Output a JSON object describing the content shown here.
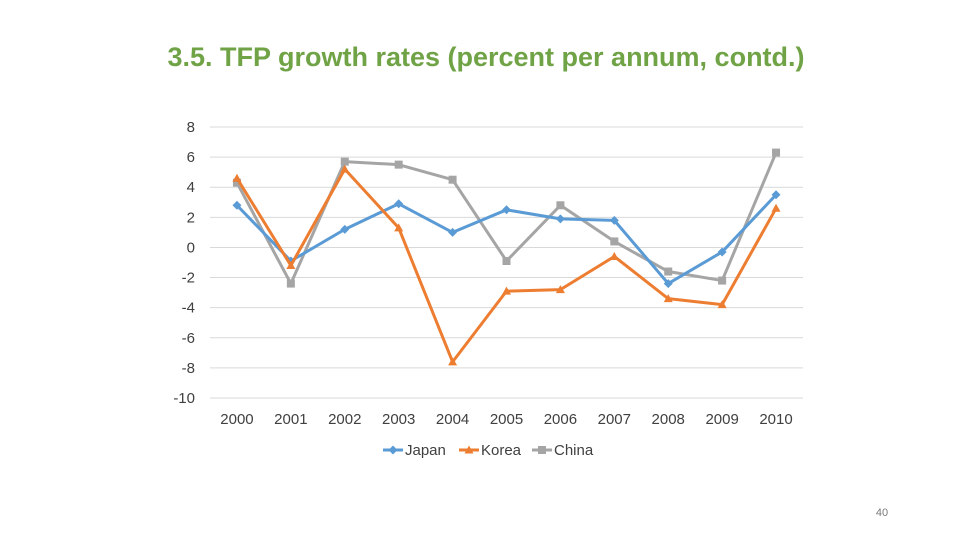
{
  "slide": {
    "title": "3.5. TFP growth rates (percent per annum, contd.)",
    "page_number": "40"
  },
  "chart_data": {
    "type": "line",
    "title": "",
    "xlabel": "",
    "ylabel": "",
    "categories": [
      "2000",
      "2001",
      "2002",
      "2003",
      "2004",
      "2005",
      "2006",
      "2007",
      "2008",
      "2009",
      "2010"
    ],
    "ylim": [
      -10,
      8
    ],
    "yticks": [
      "8",
      "6",
      "4",
      "2",
      "0",
      "-2",
      "-4",
      "-6",
      "-8",
      "-10"
    ],
    "ytick_values": [
      8,
      6,
      4,
      2,
      0,
      -2,
      -4,
      -6,
      -8,
      -10
    ],
    "grid": true,
    "legend_position": "bottom",
    "series": [
      {
        "name": "Japan",
        "color": "#5b9bd5",
        "marker": "diamond",
        "values": [
          2.8,
          -0.9,
          1.2,
          2.9,
          1.0,
          2.5,
          1.9,
          1.8,
          -2.4,
          -0.3,
          3.5
        ]
      },
      {
        "name": "Korea",
        "color": "#ed7d31",
        "marker": "triangle",
        "values": [
          4.6,
          -1.2,
          5.2,
          1.3,
          -7.6,
          -2.9,
          -2.8,
          -0.6,
          -3.4,
          -3.8,
          2.6
        ]
      },
      {
        "name": "China",
        "color": "#a5a5a5",
        "marker": "square",
        "values": [
          4.3,
          -2.4,
          5.7,
          5.5,
          4.5,
          -0.9,
          2.8,
          0.4,
          -1.6,
          -2.2,
          6.3
        ]
      }
    ]
  }
}
